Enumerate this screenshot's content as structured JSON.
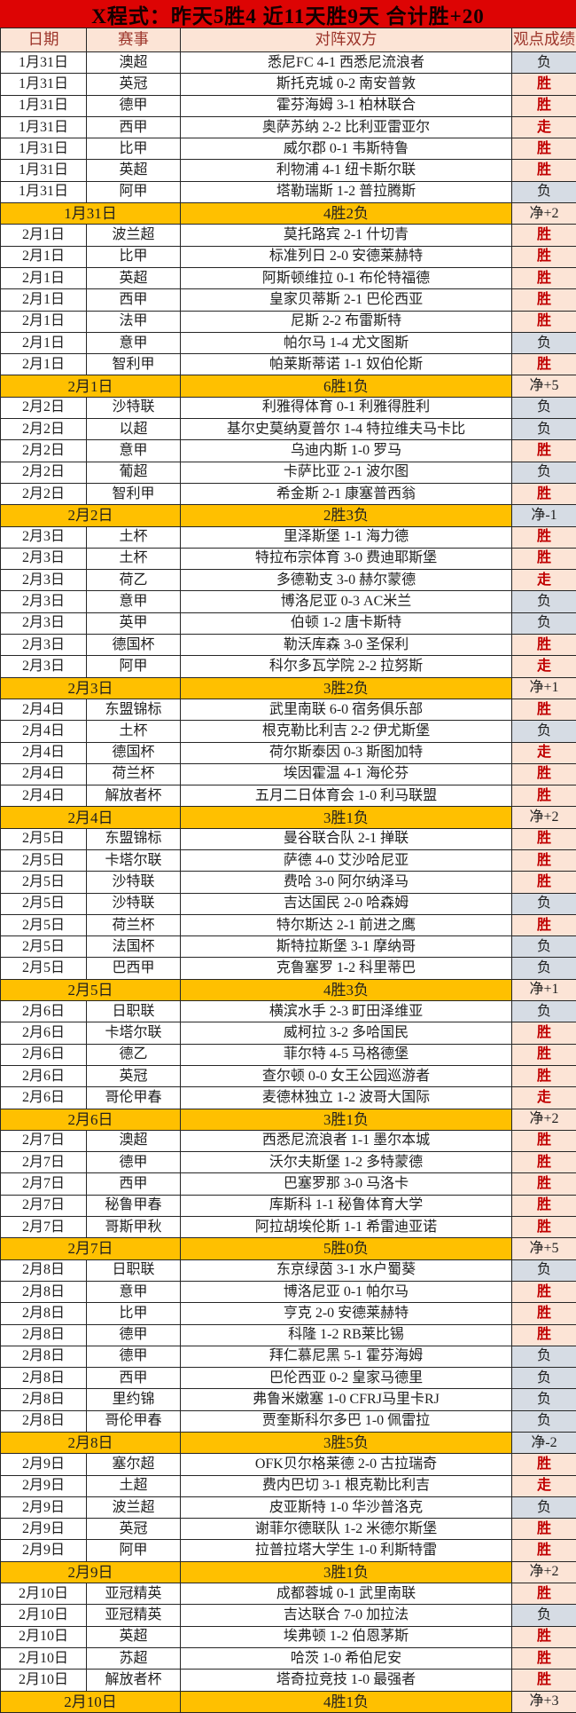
{
  "title": "X程式：昨天5胜4 近11天胜9天 合计胜+20",
  "columns": [
    "日期",
    "赛事",
    "对阵双方",
    "观点成绩"
  ],
  "colors": {
    "banner_red": "#dd0404",
    "peach": "#fce4d6",
    "gray": "#d6dce4",
    "orange": "#ffc000",
    "red_text": "#c00000",
    "header_text": "#9c342a"
  },
  "result_legend": {
    "win": "胜",
    "loss": "负",
    "push": "走"
  },
  "days": [
    {
      "date": "1月31日",
      "matches": [
        {
          "league": "澳超",
          "match": "悉尼FC 4-1 西悉尼流浪者",
          "result": "负"
        },
        {
          "league": "英冠",
          "match": "斯托克城 0-2 南安普敦",
          "result": "胜"
        },
        {
          "league": "德甲",
          "match": "霍芬海姆 3-1 柏林联合",
          "result": "胜"
        },
        {
          "league": "西甲",
          "match": "奥萨苏纳 2-2 比利亚雷亚尔",
          "result": "走"
        },
        {
          "league": "比甲",
          "match": "威尔郡 0-1 韦斯特鲁",
          "result": "胜"
        },
        {
          "league": "英超",
          "match": "利物浦 4-1 纽卡斯尔联",
          "result": "胜"
        },
        {
          "league": "阿甲",
          "match": "塔勒瑞斯 1-2 普拉腾斯",
          "result": "负"
        }
      ],
      "summary": {
        "record": "4胜2负",
        "net": "净+2"
      }
    },
    {
      "date": "2月1日",
      "matches": [
        {
          "league": "波兰超",
          "match": "莫托路宾 2-1 什切青",
          "result": "胜"
        },
        {
          "league": "比甲",
          "match": "标准列日 2-0 安德莱赫特",
          "result": "胜"
        },
        {
          "league": "英超",
          "match": "阿斯顿维拉 0-1 布伦特福德",
          "result": "胜"
        },
        {
          "league": "西甲",
          "match": "皇家贝蒂斯 2-1 巴伦西亚",
          "result": "胜"
        },
        {
          "league": "法甲",
          "match": "尼斯 2-2 布雷斯特",
          "result": "胜"
        },
        {
          "league": "意甲",
          "match": "帕尔马 1-4 尤文图斯",
          "result": "负"
        },
        {
          "league": "智利甲",
          "match": "帕莱斯蒂诺 1-1 奴伯伦斯",
          "result": "胜"
        }
      ],
      "summary": {
        "record": "6胜1负",
        "net": "净+5"
      }
    },
    {
      "date": "2月2日",
      "matches": [
        {
          "league": "沙特联",
          "match": "利雅得体育 0-1 利雅得胜利",
          "result": "负"
        },
        {
          "league": "以超",
          "match": "基尔史莫纳夏普尔 1-4 特拉维夫马卡比",
          "result": "负"
        },
        {
          "league": "意甲",
          "match": "乌迪内斯 1-0 罗马",
          "result": "胜"
        },
        {
          "league": "葡超",
          "match": "卡萨比亚 2-1 波尔图",
          "result": "负"
        },
        {
          "league": "智利甲",
          "match": "希金斯 2-1 康塞普西翁",
          "result": "胜"
        }
      ],
      "summary": {
        "record": "2胜3负",
        "net": "净-1"
      }
    },
    {
      "date": "2月3日",
      "matches": [
        {
          "league": "土杯",
          "match": "里泽斯堡 1-1 海力德",
          "result": "胜"
        },
        {
          "league": "土杯",
          "match": "特拉布宗体育 3-0 费迪耶斯堡",
          "result": "胜"
        },
        {
          "league": "荷乙",
          "match": "多德勒支 3-0 赫尔蒙德",
          "result": "走"
        },
        {
          "league": "意甲",
          "match": "博洛尼亚 0-3 AC米兰",
          "result": "负"
        },
        {
          "league": "英甲",
          "match": "伯顿 1-2 唐卡斯特",
          "result": "负"
        },
        {
          "league": "德国杯",
          "match": "勒沃库森 3-0 圣保利",
          "result": "胜"
        },
        {
          "league": "阿甲",
          "match": "科尔多瓦学院 2-2 拉努斯",
          "result": "走"
        }
      ],
      "summary": {
        "record": "3胜2负",
        "net": "净+1"
      }
    },
    {
      "date": "2月4日",
      "matches": [
        {
          "league": "东盟锦标",
          "match": "武里南联 6-0 宿务俱乐部",
          "result": "胜"
        },
        {
          "league": "土杯",
          "match": "根克勒比利吉 2-2 伊尤斯堡",
          "result": "负"
        },
        {
          "league": "德国杯",
          "match": "荷尔斯泰因 0-3 斯图加特",
          "result": "走"
        },
        {
          "league": "荷兰杯",
          "match": "埃因霍温 4-1 海伦芬",
          "result": "胜"
        },
        {
          "league": "解放者杯",
          "match": "五月二日体育会 1-0 利马联盟",
          "result": "胜"
        }
      ],
      "summary": {
        "record": "3胜1负",
        "net": "净+2"
      }
    },
    {
      "date": "2月5日",
      "matches": [
        {
          "league": "东盟锦标",
          "match": "曼谷联合队 2-1 掸联",
          "result": "胜"
        },
        {
          "league": "卡塔尔联",
          "match": "萨德 4-0 艾沙哈尼亚",
          "result": "胜"
        },
        {
          "league": "沙特联",
          "match": "费哈 3-0 阿尔纳泽马",
          "result": "胜"
        },
        {
          "league": "沙特联",
          "match": "吉达国民 2-0 哈森姆",
          "result": "负"
        },
        {
          "league": "荷兰杯",
          "match": "特尔斯达 2-1 前进之鹰",
          "result": "胜"
        },
        {
          "league": "法国杯",
          "match": "斯特拉斯堡 3-1 摩纳哥",
          "result": "负"
        },
        {
          "league": "巴西甲",
          "match": "克鲁塞罗 1-2 科里蒂巴",
          "result": "负"
        }
      ],
      "summary": {
        "record": "4胜3负",
        "net": "净+1"
      }
    },
    {
      "date": "2月6日",
      "matches": [
        {
          "league": "日职联",
          "match": "横滨水手 2-3 町田泽维亚",
          "result": "负"
        },
        {
          "league": "卡塔尔联",
          "match": "威柯拉 3-2 多哈国民",
          "result": "胜"
        },
        {
          "league": "德乙",
          "match": "菲尔特 4-5 马格德堡",
          "result": "胜"
        },
        {
          "league": "英冠",
          "match": "查尔顿 0-0 女王公园巡游者",
          "result": "胜"
        },
        {
          "league": "哥伦甲春",
          "match": "麦德林独立 1-2 波哥大国际",
          "result": "走"
        }
      ],
      "summary": {
        "record": "3胜1负",
        "net": "净+2"
      }
    },
    {
      "date": "2月7日",
      "matches": [
        {
          "league": "澳超",
          "match": "西悉尼流浪者 1-1 墨尔本城",
          "result": "胜"
        },
        {
          "league": "德甲",
          "match": "沃尔夫斯堡 1-2 多特蒙德",
          "result": "胜"
        },
        {
          "league": "西甲",
          "match": "巴塞罗那 3-0 马洛卡",
          "result": "胜"
        },
        {
          "league": "秘鲁甲春",
          "match": "库斯科 1-1 秘鲁体育大学",
          "result": "胜"
        },
        {
          "league": "哥斯甲秋",
          "match": "阿拉胡埃伦斯 1-1 希雷迪亚诺",
          "result": "胜"
        }
      ],
      "summary": {
        "record": "5胜0负",
        "net": "净+5"
      }
    },
    {
      "date": "2月8日",
      "matches": [
        {
          "league": "日职联",
          "match": "东京绿茵 3-1 水户蜀葵",
          "result": "负"
        },
        {
          "league": "意甲",
          "match": "博洛尼亚 0-1 帕尔马",
          "result": "胜"
        },
        {
          "league": "比甲",
          "match": "亨克 2-0 安德莱赫特",
          "result": "胜"
        },
        {
          "league": "德甲",
          "match": "科隆 1-2 RB莱比锡",
          "result": "胜"
        },
        {
          "league": "德甲",
          "match": "拜仁慕尼黑 5-1 霍芬海姆",
          "result": "负"
        },
        {
          "league": "西甲",
          "match": "巴伦西亚 0-2 皇家马德里",
          "result": "负"
        },
        {
          "league": "里约锦",
          "match": "弗鲁米嫩塞 1-0 CFRJ马里卡RJ",
          "result": "负"
        },
        {
          "league": "哥伦甲春",
          "match": "贾奎斯科尔多巴 1-0 佩雷拉",
          "result": "负"
        }
      ],
      "summary": {
        "record": "3胜5负",
        "net": "净-2"
      }
    },
    {
      "date": "2月9日",
      "matches": [
        {
          "league": "塞尔超",
          "match": "OFK贝尔格莱德 2-0 古拉瑞奇",
          "result": "胜"
        },
        {
          "league": "土超",
          "match": "费内巴切 3-1 根克勒比利吉",
          "result": "走"
        },
        {
          "league": "波兰超",
          "match": "皮亚斯特 1-0 华沙普洛克",
          "result": "负"
        },
        {
          "league": "英冠",
          "match": "谢菲尔德联队 1-2 米德尔斯堡",
          "result": "胜"
        },
        {
          "league": "阿甲",
          "match": "拉普拉塔大学生 1-0 利斯特雷",
          "result": "胜"
        }
      ],
      "summary": {
        "record": "3胜1负",
        "net": "净+2"
      }
    },
    {
      "date": "2月10日",
      "matches": [
        {
          "league": "亚冠精英",
          "match": "成都蓉城 0-1 武里南联",
          "result": "胜"
        },
        {
          "league": "亚冠精英",
          "match": "吉达联合 7-0 加拉法",
          "result": "负"
        },
        {
          "league": "英超",
          "match": "埃弗顿 1-2 伯恩茅斯",
          "result": "胜"
        },
        {
          "league": "苏超",
          "match": "哈茨 1-0 希伯尼安",
          "result": "胜"
        },
        {
          "league": "解放者杯",
          "match": "塔奇拉竞技 1-0 最强者",
          "result": "胜"
        }
      ],
      "summary": {
        "record": "4胜1负",
        "net": "净+3"
      }
    }
  ]
}
